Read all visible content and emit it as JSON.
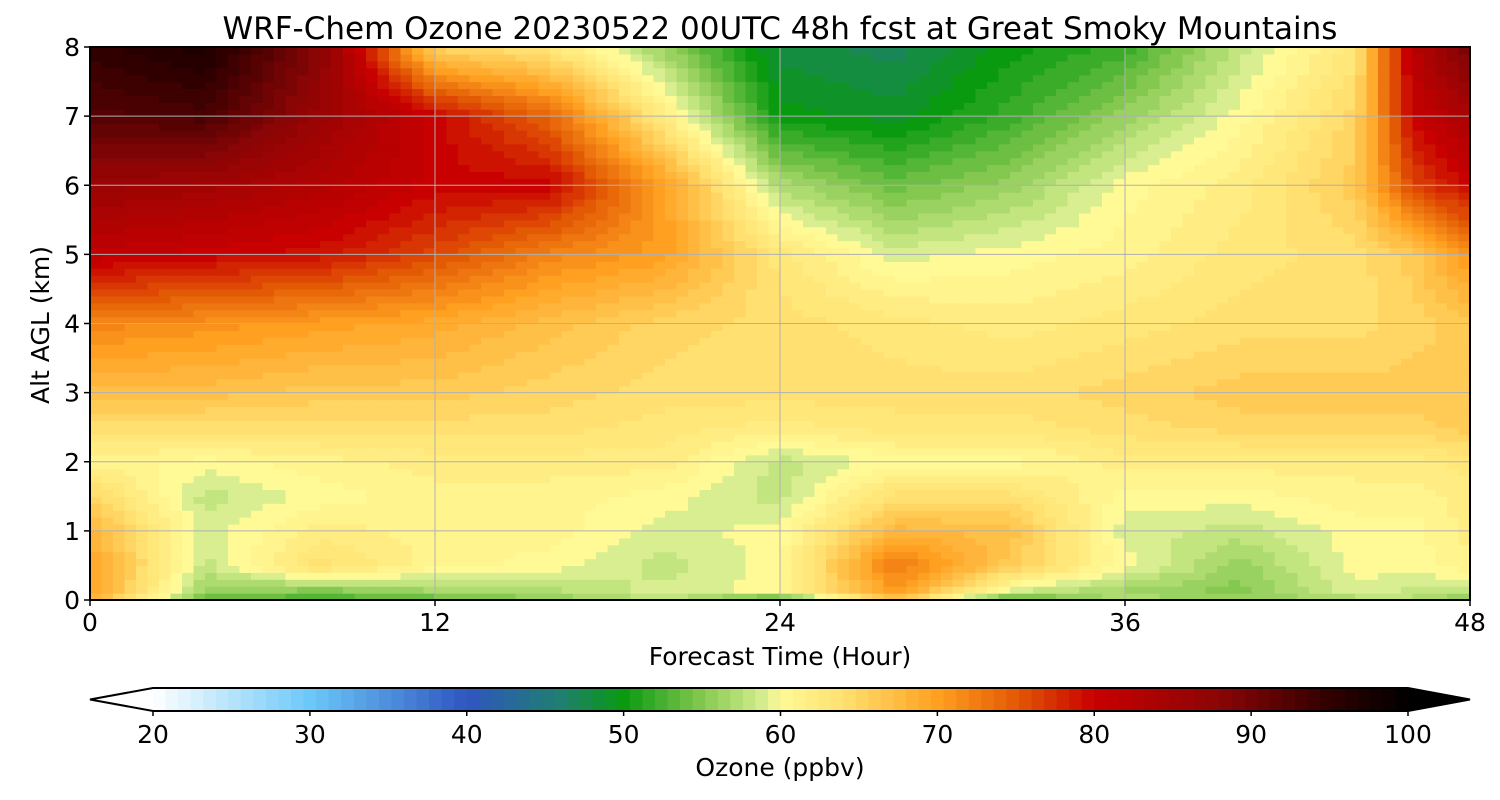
{
  "chart_data": {
    "type": "heatmap",
    "title": "WRF-Chem Ozone  20230522 00UTC 48h fcst at Great Smoky Mountains",
    "xlabel": "Forecast Time (Hour)",
    "ylabel": "Alt AGL (km)",
    "xlim": [
      0,
      48
    ],
    "ylim": [
      0,
      8
    ],
    "x_ticks": [
      "0",
      "12",
      "24",
      "36",
      "48"
    ],
    "y_ticks": [
      "0",
      "1",
      "2",
      "3",
      "4",
      "5",
      "6",
      "7",
      "8"
    ],
    "grid": true,
    "colorbar": {
      "label": "Ozone  (ppbv)",
      "min": 20,
      "max": 100,
      "extend": "both",
      "tick_labels": [
        "20",
        "30",
        "40",
        "50",
        "60",
        "70",
        "80",
        "90",
        "100"
      ],
      "color_stops": [
        {
          "value": 20,
          "color": "#ffffff"
        },
        {
          "value": 30,
          "color": "#6cc8f8"
        },
        {
          "value": 40,
          "color": "#2f55c0"
        },
        {
          "value": 46,
          "color": "#1f7f70"
        },
        {
          "value": 50,
          "color": "#0a9a10"
        },
        {
          "value": 55,
          "color": "#84c850"
        },
        {
          "value": 59,
          "color": "#d8ee90"
        },
        {
          "value": 60,
          "color": "#fffa96"
        },
        {
          "value": 64,
          "color": "#ffe070"
        },
        {
          "value": 70,
          "color": "#ffa020"
        },
        {
          "value": 75,
          "color": "#e35a05"
        },
        {
          "value": 80,
          "color": "#c80000"
        },
        {
          "value": 88,
          "color": "#8a0505"
        },
        {
          "value": 95,
          "color": "#300000"
        },
        {
          "value": 100,
          "color": "#000000"
        }
      ]
    },
    "hours": [
      0,
      4,
      8,
      12,
      16,
      20,
      24,
      28,
      32,
      36,
      40,
      44,
      46,
      48
    ],
    "altitudes_km": [
      0,
      0.1,
      0.5,
      1,
      1.5,
      2,
      2.5,
      3,
      4,
      5,
      6,
      7,
      8
    ],
    "values_ppbv": [
      [
        68,
        53,
        52,
        53,
        55,
        57,
        50,
        66,
        51,
        58,
        56,
        56,
        57,
        54
      ],
      [
        70,
        56,
        54,
        56,
        57,
        59,
        60,
        70,
        58,
        56,
        55,
        59,
        58,
        58
      ],
      [
        70,
        58,
        64,
        61,
        60,
        58,
        60,
        73,
        66,
        60,
        56,
        60,
        60,
        61
      ],
      [
        68,
        59,
        62,
        61,
        61,
        59,
        60,
        68,
        67,
        59,
        58,
        60,
        60,
        62
      ],
      [
        65,
        58,
        60,
        61,
        61,
        60,
        58,
        64,
        64,
        60,
        60,
        61,
        61,
        62
      ],
      [
        61,
        60,
        61,
        62,
        62,
        62,
        58,
        60,
        60,
        62,
        62,
        62,
        62,
        63
      ],
      [
        64,
        64,
        64,
        64,
        64,
        63,
        62,
        63,
        63,
        64,
        65,
        65,
        65,
        66
      ],
      [
        67,
        67,
        66,
        66,
        65,
        64,
        64,
        64,
        64,
        65,
        66,
        66,
        66,
        66
      ],
      [
        72,
        71,
        70,
        69,
        67,
        65,
        64,
        63,
        62,
        63,
        64,
        64,
        65,
        66
      ],
      [
        81,
        80,
        79,
        76,
        72,
        70,
        63,
        59,
        60,
        61,
        63,
        64,
        66,
        71
      ],
      [
        86,
        85,
        83,
        80,
        80,
        70,
        57,
        54,
        56,
        60,
        62,
        66,
        76,
        80
      ],
      [
        92,
        93,
        86,
        80,
        74,
        62,
        50,
        49,
        52,
        56,
        60,
        65,
        80,
        84
      ],
      [
        95,
        97,
        88,
        65,
        63,
        56,
        48,
        47,
        50,
        52,
        58,
        63,
        82,
        90
      ]
    ]
  }
}
